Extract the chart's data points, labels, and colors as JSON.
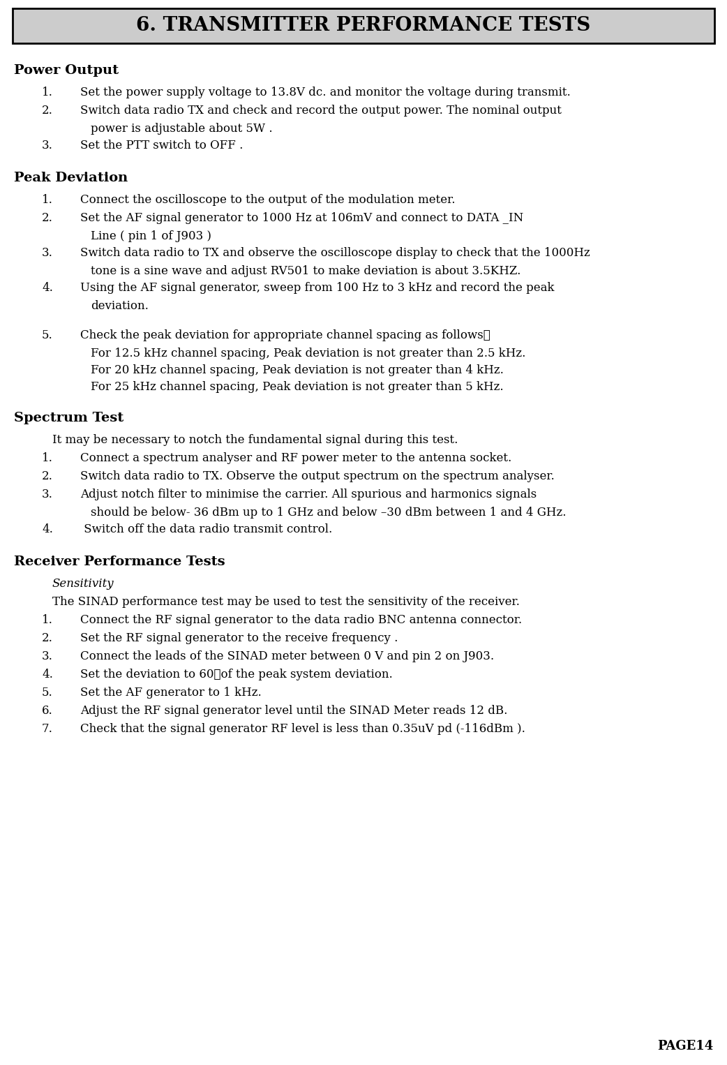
{
  "title": "6. TRANSMITTER PERFORMANCE TESTS",
  "bg_color": "#ffffff",
  "title_bg": "#cccccc",
  "text_color": "#000000",
  "page_number": "PAGE14",
  "sections": [
    {
      "heading": "Power Output",
      "content": [
        {
          "type": "numbered",
          "num": "1.",
          "text": "Set the power supply voltage to 13.8V dc. and monitor the voltage during transmit."
        },
        {
          "type": "numbered",
          "num": "2.",
          "text": "Switch data radio TX and check and record the output power. The nominal output",
          "cont": "power is adjustable about 5W ."
        },
        {
          "type": "numbered",
          "num": "3.",
          "text": "Set the PTT switch to OFF ."
        }
      ]
    },
    {
      "heading": "Peak Deviation",
      "content": [
        {
          "type": "numbered",
          "num": "1.",
          "text": "Connect the oscilloscope to the output of the modulation meter."
        },
        {
          "type": "numbered",
          "num": "2.",
          "text": "Set the AF signal generator to 1000 Hz at 106mV and connect to DATA _IN",
          "cont": "Line ( pin 1 of J903 )"
        },
        {
          "type": "numbered",
          "num": "3.",
          "text": "Switch data radio to TX and observe the oscilloscope display to check that the 1000Hz",
          "cont": "tone is a sine wave and adjust RV501 to make deviation is about 3.5KHZ."
        },
        {
          "type": "numbered",
          "num": "4.",
          "text": "Using the AF signal generator, sweep from 100 Hz to 3 kHz and record the peak",
          "cont": "deviation."
        },
        {
          "type": "blank"
        },
        {
          "type": "numbered",
          "num": "5.",
          "text": "Check the peak deviation for appropriate channel spacing as follows："
        },
        {
          "type": "indented",
          "text": "For 12.5 kHz channel spacing, Peak deviation is not greater than 2.5 kHz."
        },
        {
          "type": "indented",
          "text": "For 20 kHz channel spacing, Peak deviation is not greater than 4 kHz."
        },
        {
          "type": "indented",
          "text": "For 25 kHz channel spacing, Peak deviation is not greater than 5 kHz."
        }
      ]
    },
    {
      "heading": "Spectrum Test",
      "content": [
        {
          "type": "plain_indent",
          "text": "It may be necessary to notch the fundamental signal during this test."
        },
        {
          "type": "numbered",
          "num": "1.",
          "text": "Connect a spectrum analyser and RF power meter to the antenna socket."
        },
        {
          "type": "numbered",
          "num": "2.",
          "text": "Switch data radio to TX. Observe the output spectrum on the spectrum analyser."
        },
        {
          "type": "numbered",
          "num": "3.",
          "text": "Adjust notch filter to minimise the carrier. All spurious and harmonics signals",
          "cont": "should be below- 36 dBm up to 1 GHz and below –30 dBm between 1 and 4 GHz."
        },
        {
          "type": "numbered",
          "num": "4.",
          "text": " Switch off the data radio transmit control."
        }
      ]
    },
    {
      "heading": "Receiver Performance Tests",
      "content": [
        {
          "type": "subheading",
          "text": "Sensitivity"
        },
        {
          "type": "plain_indent",
          "text": "The SINAD performance test may be used to test the sensitivity of the receiver."
        },
        {
          "type": "numbered",
          "num": "1.",
          "text": "Connect the RF signal generator to the data radio BNC antenna connector."
        },
        {
          "type": "numbered",
          "num": "2.",
          "text": "Set the RF signal generator to the receive frequency ."
        },
        {
          "type": "numbered",
          "num": "3.",
          "text": "Connect the leads of the SINAD meter between 0 V and pin 2 on J903."
        },
        {
          "type": "numbered",
          "num": "4.",
          "text": "Set the deviation to 60％of the peak system deviation."
        },
        {
          "type": "numbered",
          "num": "5.",
          "text": "Set the AF generator to 1 kHz."
        },
        {
          "type": "numbered",
          "num": "6.",
          "text": "Adjust the RF signal generator level until the SINAD Meter reads 12 dB."
        },
        {
          "type": "numbered",
          "num": "7.",
          "text": "Check that the signal generator RF level is less than 0.35uV pd (-116dBm )."
        }
      ]
    }
  ]
}
